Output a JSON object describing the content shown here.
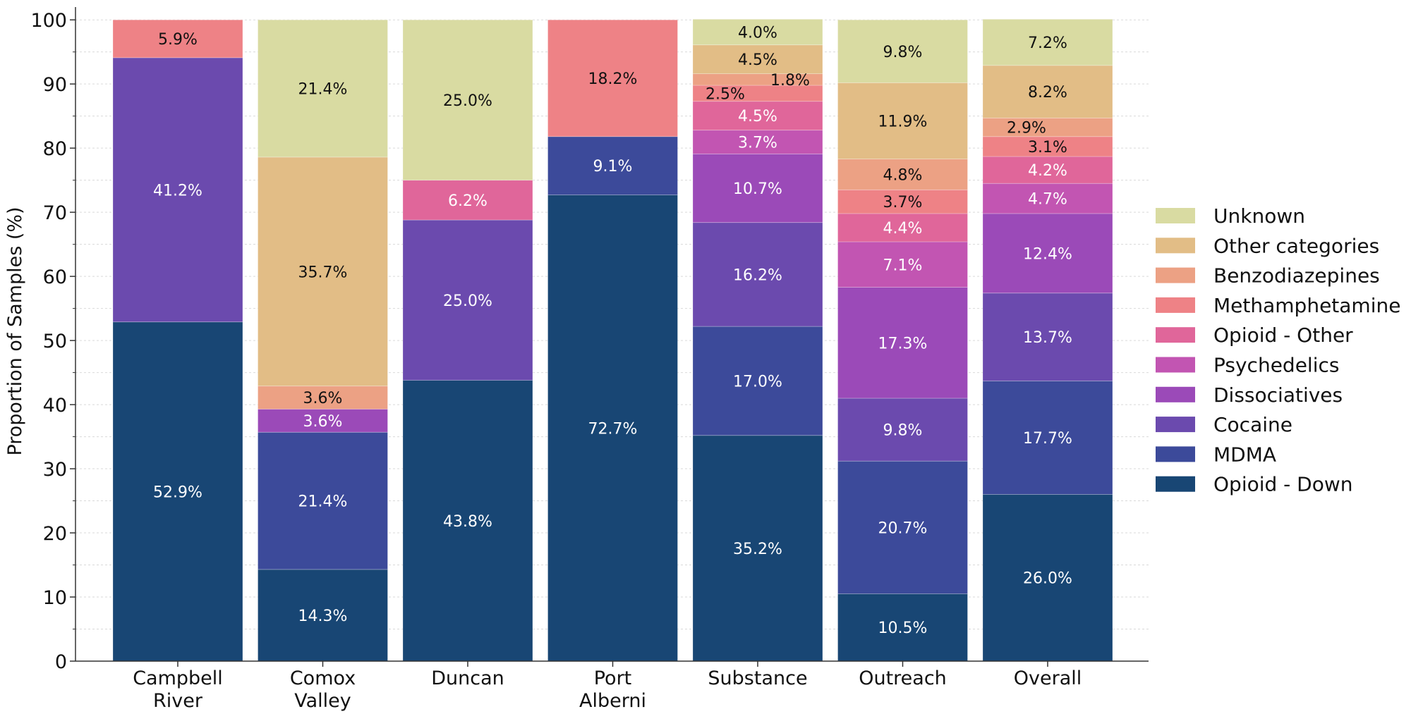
{
  "chart_data": {
    "type": "bar",
    "stacked": true,
    "title": "",
    "xlabel": "",
    "ylabel": "Proportion of Samples (%)",
    "ylim": [
      0,
      102
    ],
    "yticks": [
      0,
      10,
      20,
      30,
      40,
      50,
      60,
      70,
      80,
      90,
      100
    ],
    "grid": "horizontal dotted",
    "legend_position": "right",
    "categories": [
      [
        "Campbell",
        "River"
      ],
      [
        "Comox",
        "Valley"
      ],
      [
        "Duncan"
      ],
      [
        "Port",
        "Alberni"
      ],
      [
        "Substance"
      ],
      [
        "Outreach"
      ],
      [
        "Overall"
      ]
    ],
    "series": [
      {
        "name": "Opioid - Down",
        "color": "#184674",
        "label_color": "#ffffff",
        "values": [
          52.9,
          14.3,
          43.8,
          72.7,
          35.2,
          10.5,
          26.0
        ],
        "labels": [
          "52.9%",
          "14.3%",
          "43.8%",
          "72.7%",
          "35.2%",
          "10.5%",
          "26.0%"
        ]
      },
      {
        "name": "MDMA",
        "color": "#3c4a9a",
        "label_color": "#ffffff",
        "values": [
          0,
          21.4,
          0,
          9.1,
          17.0,
          20.7,
          17.7
        ],
        "labels": [
          "",
          "21.4%",
          "",
          "9.1%",
          "17.0%",
          "20.7%",
          "17.7%"
        ]
      },
      {
        "name": "Cocaine",
        "color": "#6b4aae",
        "label_color": "#ffffff",
        "values": [
          41.2,
          0,
          25.0,
          0,
          16.2,
          9.8,
          13.7
        ],
        "labels": [
          "41.2%",
          "",
          "25.0%",
          "",
          "16.2%",
          "9.8%",
          "13.7%"
        ]
      },
      {
        "name": "Dissociatives",
        "color": "#9b4ab8",
        "label_color": "#ffffff",
        "values": [
          0,
          3.6,
          0,
          0,
          10.7,
          17.3,
          12.4
        ],
        "labels": [
          "",
          "3.6%",
          "",
          "",
          "10.7%",
          "17.3%",
          "12.4%"
        ]
      },
      {
        "name": "Psychedelics",
        "color": "#c255b2",
        "label_color": "#ffffff",
        "values": [
          0,
          0,
          0,
          0,
          3.7,
          7.1,
          4.7
        ],
        "labels": [
          "",
          "",
          "",
          "",
          "3.7%",
          "7.1%",
          "4.7%"
        ]
      },
      {
        "name": "Opioid - Other",
        "color": "#e0669a",
        "label_color": "#ffffff",
        "values": [
          0,
          0,
          6.2,
          0,
          4.5,
          4.4,
          4.2
        ],
        "labels": [
          "",
          "",
          "6.2%",
          "",
          "4.5%",
          "4.4%",
          "4.2%"
        ]
      },
      {
        "name": "Methamphetamine",
        "color": "#ee8286",
        "label_color": "#111111",
        "values": [
          5.9,
          0,
          0,
          18.2,
          2.5,
          3.7,
          3.1
        ],
        "labels": [
          "5.9%",
          "",
          "",
          "18.2%",
          "2.5%",
          "3.7%",
          "3.1%"
        ]
      },
      {
        "name": "Benzodiazepines",
        "color": "#eca184",
        "label_color": "#111111",
        "values": [
          0,
          3.6,
          0,
          0,
          1.8,
          4.8,
          2.9
        ],
        "labels": [
          "",
          "3.6%",
          "",
          "",
          "1.8%",
          "4.8%",
          "2.9%"
        ]
      },
      {
        "name": "Other categories",
        "color": "#e2bd86",
        "label_color": "#111111",
        "values": [
          0,
          35.7,
          0,
          0,
          4.5,
          11.9,
          8.2
        ],
        "labels": [
          "",
          "35.7%",
          "",
          "",
          "4.5%",
          "11.9%",
          "8.2%"
        ]
      },
      {
        "name": "Unknown",
        "color": "#d9dba2",
        "label_color": "#111111",
        "values": [
          0,
          21.4,
          25.0,
          0,
          4.0,
          9.8,
          7.2
        ],
        "labels": [
          "",
          "21.4%",
          "25.0%",
          "",
          "4.0%",
          "9.8%",
          "7.2%"
        ]
      }
    ],
    "legend_order": [
      "Unknown",
      "Other categories",
      "Benzodiazepines",
      "Methamphetamine",
      "Opioid - Other",
      "Psychedelics",
      "Dissociatives",
      "Cocaine",
      "MDMA",
      "Opioid - Down"
    ]
  }
}
